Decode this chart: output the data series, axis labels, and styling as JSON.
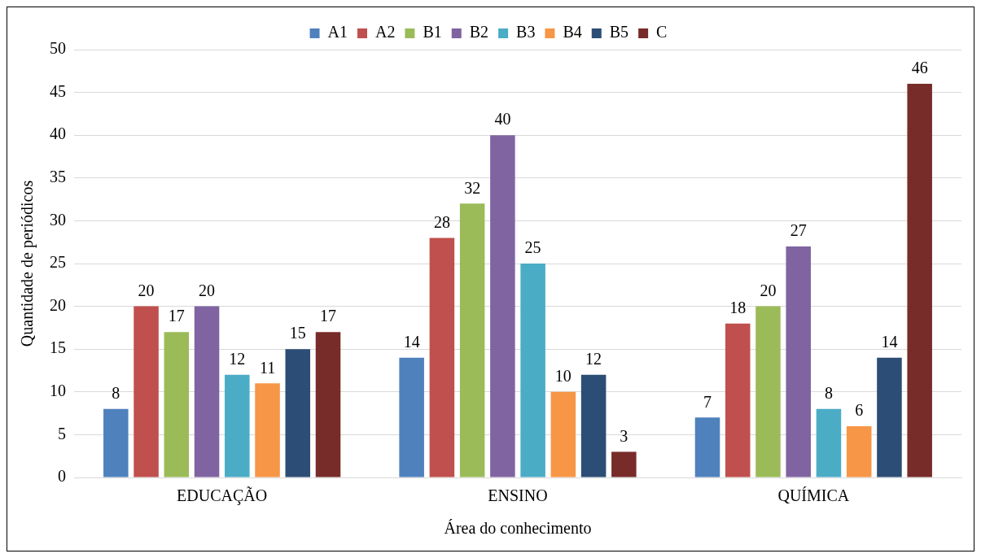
{
  "chart_data": {
    "type": "bar",
    "xlabel": "Área do conhecimento",
    "ylabel": "Quantidade de periódicos",
    "categories": [
      "EDUCAÇÃO",
      "ENSINO",
      "QUÍMICA"
    ],
    "series": [
      {
        "name": "A1",
        "color": "#4f81bd",
        "values": [
          8,
          14,
          7
        ]
      },
      {
        "name": "A2",
        "color": "#c0504d",
        "values": [
          20,
          28,
          18
        ]
      },
      {
        "name": "B1",
        "color": "#9bbb59",
        "values": [
          17,
          32,
          20
        ]
      },
      {
        "name": "B2",
        "color": "#8064a2",
        "values": [
          20,
          40,
          27
        ]
      },
      {
        "name": "B3",
        "color": "#4bacc6",
        "values": [
          12,
          25,
          8
        ]
      },
      {
        "name": "B4",
        "color": "#f79646",
        "values": [
          11,
          10,
          6
        ]
      },
      {
        "name": "B5",
        "color": "#2c4d75",
        "values": [
          15,
          12,
          14
        ]
      },
      {
        "name": "C",
        "color": "#772c2a",
        "values": [
          17,
          3,
          46
        ]
      }
    ],
    "ylim": [
      0,
      50
    ],
    "yticks": [
      0,
      5,
      10,
      15,
      20,
      25,
      30,
      35,
      40,
      45,
      50
    ],
    "grid": "y",
    "legend": "top",
    "data_labels": true
  }
}
